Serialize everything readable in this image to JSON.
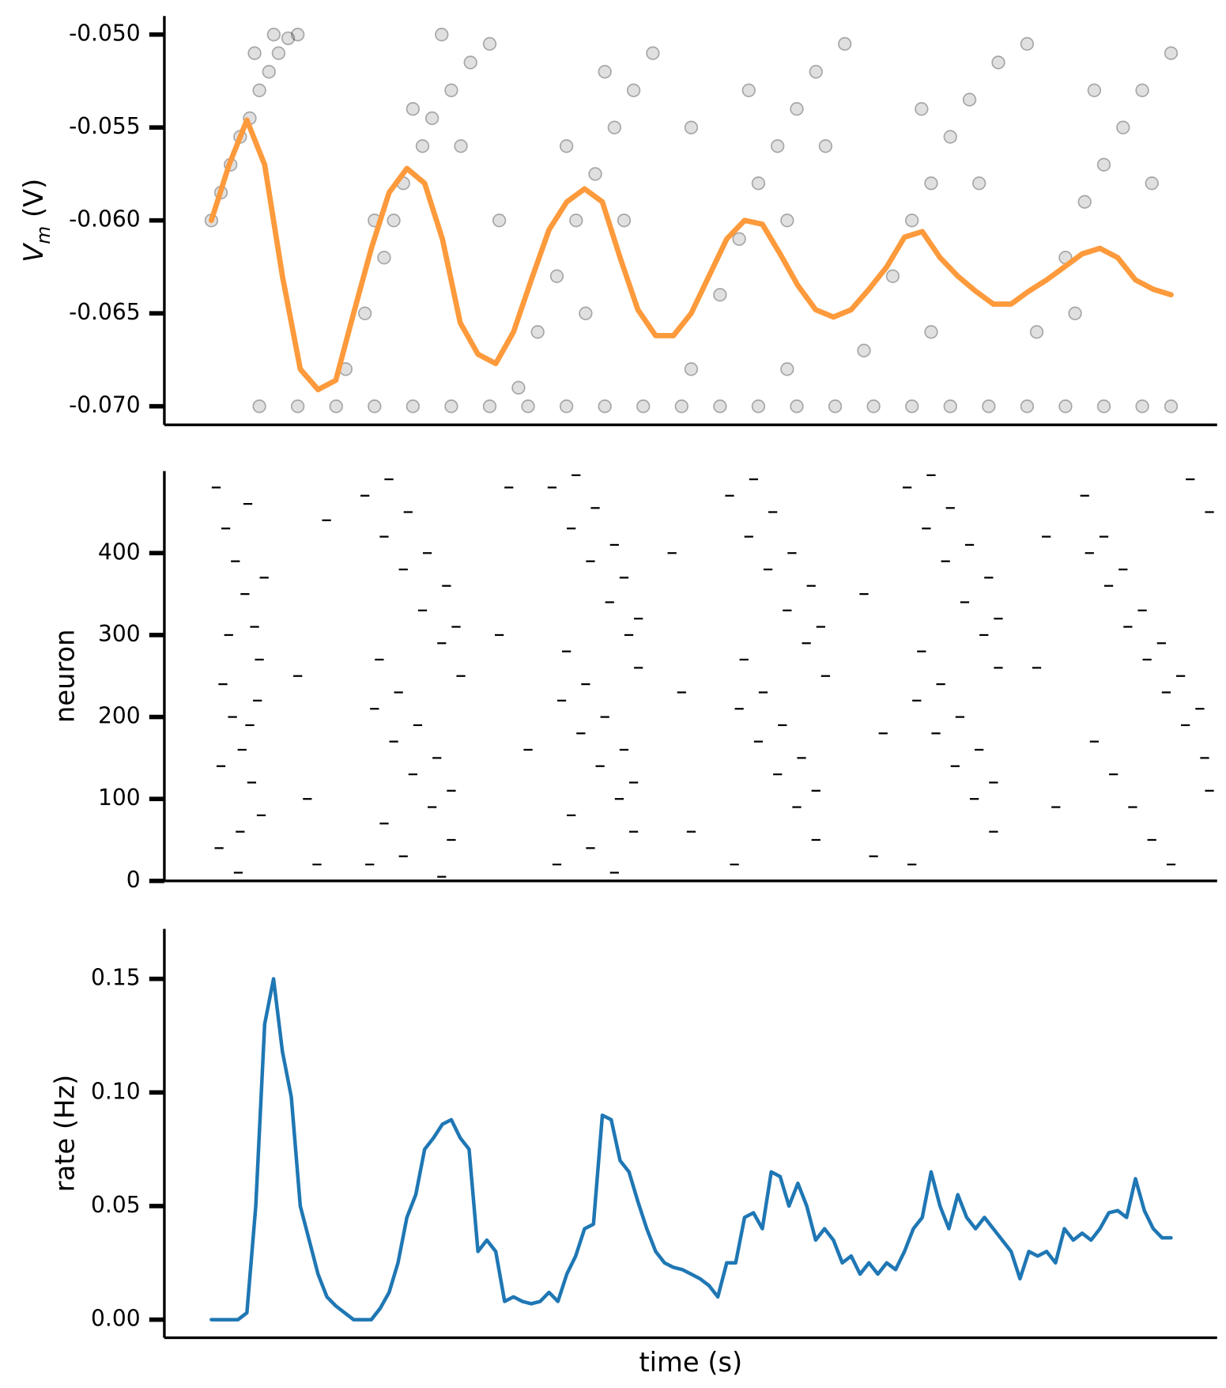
{
  "chart_data": [
    {
      "type": "scatter",
      "ylabel": [
        "V",
        "m",
        " (V)"
      ],
      "xlim": [
        -0.049,
        1.048
      ],
      "ylim": [
        -0.071,
        -0.049
      ],
      "yticks": [
        {
          "value": -0.07,
          "label": "-0.070"
        },
        {
          "value": -0.065,
          "label": "-0.065"
        },
        {
          "value": -0.06,
          "label": "-0.060"
        },
        {
          "value": -0.055,
          "label": "-0.055"
        },
        {
          "value": -0.05,
          "label": "-0.050"
        }
      ],
      "scatter": {
        "color": "#000000",
        "x": [
          0.05,
          0.09,
          0.13,
          0.17,
          0.21,
          0.25,
          0.29,
          0.33,
          0.37,
          0.41,
          0.45,
          0.49,
          0.53,
          0.57,
          0.61,
          0.65,
          0.69,
          0.73,
          0.77,
          0.81,
          0.85,
          0.89,
          0.93,
          0.97,
          1.0,
          0.0,
          0.01,
          0.02,
          0.03,
          0.04,
          0.05,
          0.06,
          0.07,
          0.08,
          0.09,
          0.045,
          0.065,
          0.14,
          0.16,
          0.18,
          0.19,
          0.2,
          0.22,
          0.23,
          0.25,
          0.27,
          0.29,
          0.17,
          0.21,
          0.24,
          0.26,
          0.32,
          0.34,
          0.36,
          0.38,
          0.4,
          0.42,
          0.44,
          0.46,
          0.37,
          0.41,
          0.43,
          0.39,
          0.5,
          0.53,
          0.55,
          0.57,
          0.59,
          0.61,
          0.63,
          0.66,
          0.56,
          0.6,
          0.64,
          0.68,
          0.71,
          0.73,
          0.75,
          0.77,
          0.79,
          0.82,
          0.85,
          0.74,
          0.8,
          0.86,
          0.89,
          0.91,
          0.93,
          0.95,
          0.97,
          1.0,
          0.92,
          0.98,
          0.6,
          0.75,
          0.9,
          0.3,
          0.5
        ],
        "values": [
          -0.07,
          -0.07,
          -0.07,
          -0.07,
          -0.07,
          -0.07,
          -0.07,
          -0.07,
          -0.07,
          -0.07,
          -0.07,
          -0.07,
          -0.07,
          -0.07,
          -0.07,
          -0.07,
          -0.07,
          -0.07,
          -0.07,
          -0.07,
          -0.07,
          -0.07,
          -0.07,
          -0.07,
          -0.07,
          -0.06,
          -0.0585,
          -0.057,
          -0.0555,
          -0.0545,
          -0.053,
          -0.052,
          -0.051,
          -0.0502,
          -0.05,
          -0.051,
          -0.05,
          -0.068,
          -0.065,
          -0.062,
          -0.06,
          -0.058,
          -0.056,
          -0.0545,
          -0.053,
          -0.0515,
          -0.0505,
          -0.06,
          -0.054,
          -0.05,
          -0.056,
          -0.069,
          -0.066,
          -0.063,
          -0.06,
          -0.0575,
          -0.055,
          -0.053,
          -0.051,
          -0.056,
          -0.052,
          -0.06,
          -0.065,
          -0.068,
          -0.064,
          -0.061,
          -0.058,
          -0.056,
          -0.054,
          -0.052,
          -0.0505,
          -0.053,
          -0.06,
          -0.056,
          -0.067,
          -0.063,
          -0.06,
          -0.058,
          -0.0555,
          -0.0535,
          -0.0515,
          -0.0505,
          -0.054,
          -0.058,
          -0.066,
          -0.062,
          -0.059,
          -0.057,
          -0.055,
          -0.053,
          -0.051,
          -0.053,
          -0.058,
          -0.068,
          -0.066,
          -0.065,
          -0.06,
          -0.055
        ]
      },
      "line": {
        "color": "#fd9a3c",
        "values": [
          -0.06,
          -0.057,
          -0.0546,
          -0.057,
          -0.063,
          -0.068,
          -0.0691,
          -0.0686,
          -0.065,
          -0.0615,
          -0.0585,
          -0.0572,
          -0.058,
          -0.061,
          -0.0655,
          -0.0672,
          -0.0677,
          -0.066,
          -0.0632,
          -0.0605,
          -0.059,
          -0.0583,
          -0.059,
          -0.062,
          -0.0648,
          -0.0662,
          -0.0662,
          -0.065,
          -0.063,
          -0.061,
          -0.06,
          -0.0602,
          -0.0618,
          -0.0635,
          -0.0648,
          -0.0652,
          -0.0648,
          -0.0637,
          -0.0625,
          -0.0609,
          -0.0606,
          -0.062,
          -0.063,
          -0.0638,
          -0.0645,
          -0.0645,
          -0.0638,
          -0.0632,
          -0.0625,
          -0.0618,
          -0.0615,
          -0.062,
          -0.0632,
          -0.0637,
          -0.064
        ]
      }
    },
    {
      "type": "raster",
      "ylabel": "neuron",
      "xlim": [
        -0.049,
        1.048
      ],
      "ylim": [
        0,
        500
      ],
      "yticks": [
        0,
        100,
        200,
        300,
        400
      ],
      "color": "#000000",
      "x": [
        0.005,
        0.015,
        0.025,
        0.035,
        0.045,
        0.05,
        0.012,
        0.022,
        0.032,
        0.042,
        0.052,
        0.008,
        0.028,
        0.038,
        0.018,
        0.048,
        0.03,
        0.04,
        0.01,
        0.055,
        0.16,
        0.18,
        0.2,
        0.22,
        0.24,
        0.26,
        0.17,
        0.19,
        0.21,
        0.23,
        0.25,
        0.165,
        0.185,
        0.205,
        0.225,
        0.245,
        0.255,
        0.175,
        0.195,
        0.215,
        0.235,
        0.25,
        0.18,
        0.2,
        0.24,
        0.355,
        0.375,
        0.395,
        0.415,
        0.435,
        0.445,
        0.365,
        0.385,
        0.405,
        0.425,
        0.44,
        0.36,
        0.38,
        0.4,
        0.42,
        0.43,
        0.445,
        0.37,
        0.39,
        0.41,
        0.43,
        0.44,
        0.375,
        0.395,
        0.42,
        0.54,
        0.56,
        0.58,
        0.6,
        0.62,
        0.64,
        0.55,
        0.57,
        0.59,
        0.61,
        0.63,
        0.545,
        0.565,
        0.585,
        0.605,
        0.625,
        0.635,
        0.555,
        0.575,
        0.595,
        0.615,
        0.63,
        0.725,
        0.745,
        0.765,
        0.785,
        0.805,
        0.82,
        0.735,
        0.755,
        0.775,
        0.795,
        0.815,
        0.73,
        0.75,
        0.77,
        0.79,
        0.81,
        0.82,
        0.74,
        0.76,
        0.78,
        0.8,
        0.815,
        0.91,
        0.93,
        0.95,
        0.97,
        0.99,
        1.01,
        1.03,
        0.92,
        0.94,
        0.96,
        0.98,
        1.0,
        1.02,
        1.04,
        0.915,
        0.935,
        0.955,
        0.975,
        0.995,
        1.015,
        1.035,
        1.04,
        0.09,
        0.1,
        0.12,
        0.3,
        0.33,
        0.48,
        0.5,
        0.68,
        0.7,
        0.87,
        0.88,
        0.11,
        0.31,
        0.49,
        0.69,
        0.86
      ],
      "values": [
        480,
        430,
        390,
        350,
        310,
        270,
        240,
        200,
        160,
        120,
        80,
        40,
        10,
        460,
        300,
        220,
        60,
        190,
        140,
        370,
        470,
        420,
        380,
        330,
        290,
        250,
        210,
        170,
        130,
        90,
        50,
        20,
        490,
        450,
        400,
        360,
        310,
        270,
        230,
        190,
        150,
        110,
        70,
        30,
        5,
        480,
        430,
        390,
        340,
        300,
        260,
        220,
        180,
        140,
        100,
        60,
        20,
        495,
        455,
        410,
        370,
        320,
        280,
        240,
        200,
        160,
        120,
        80,
        40,
        10,
        470,
        420,
        380,
        330,
        290,
        250,
        210,
        170,
        130,
        90,
        50,
        20,
        490,
        450,
        400,
        360,
        310,
        270,
        230,
        190,
        150,
        110,
        480,
        430,
        390,
        340,
        300,
        260,
        220,
        180,
        140,
        100,
        60,
        20,
        495,
        455,
        410,
        370,
        320,
        280,
        240,
        200,
        160,
        120,
        470,
        420,
        380,
        330,
        290,
        250,
        210,
        170,
        130,
        90,
        50,
        20,
        490,
        450,
        400,
        360,
        310,
        270,
        230,
        190,
        150,
        110,
        250,
        100,
        440,
        300,
        160,
        400,
        60,
        350,
        180,
        420,
        90,
        20,
        480,
        230,
        30,
        260
      ]
    },
    {
      "type": "line",
      "ylabel": "rate (Hz)",
      "xlabel": "time (s)",
      "xlim": [
        -0.049,
        1.048
      ],
      "ylim": [
        -0.008,
        0.172
      ],
      "yticks": [
        {
          "value": 0,
          "label": "0.00"
        },
        {
          "value": 0.05,
          "label": "0.05"
        },
        {
          "value": 0.1,
          "label": "0.10"
        },
        {
          "value": 0.15,
          "label": "0.15"
        }
      ],
      "color": "#1f77b4",
      "values": [
        0,
        0,
        0,
        0,
        0.003,
        0.05,
        0.13,
        0.15,
        0.118,
        0.098,
        0.05,
        0.035,
        0.02,
        0.01,
        0.006,
        0.003,
        0,
        0,
        0,
        0.005,
        0.012,
        0.025,
        0.045,
        0.055,
        0.075,
        0.08,
        0.086,
        0.088,
        0.08,
        0.075,
        0.03,
        0.035,
        0.03,
        0.008,
        0.01,
        0.008,
        0.007,
        0.008,
        0.012,
        0.008,
        0.02,
        0.028,
        0.04,
        0.042,
        0.09,
        0.088,
        0.07,
        0.065,
        0.052,
        0.04,
        0.03,
        0.025,
        0.023,
        0.022,
        0.02,
        0.018,
        0.015,
        0.01,
        0.025,
        0.025,
        0.045,
        0.047,
        0.04,
        0.065,
        0.063,
        0.05,
        0.06,
        0.05,
        0.035,
        0.04,
        0.035,
        0.025,
        0.028,
        0.02,
        0.025,
        0.02,
        0.025,
        0.022,
        0.03,
        0.04,
        0.045,
        0.065,
        0.05,
        0.04,
        0.055,
        0.045,
        0.04,
        0.045,
        0.04,
        0.035,
        0.03,
        0.018,
        0.03,
        0.028,
        0.03,
        0.025,
        0.04,
        0.035,
        0.038,
        0.035,
        0.04,
        0.047,
        0.048,
        0.045,
        0.062,
        0.048,
        0.04,
        0.036,
        0.036
      ]
    }
  ]
}
